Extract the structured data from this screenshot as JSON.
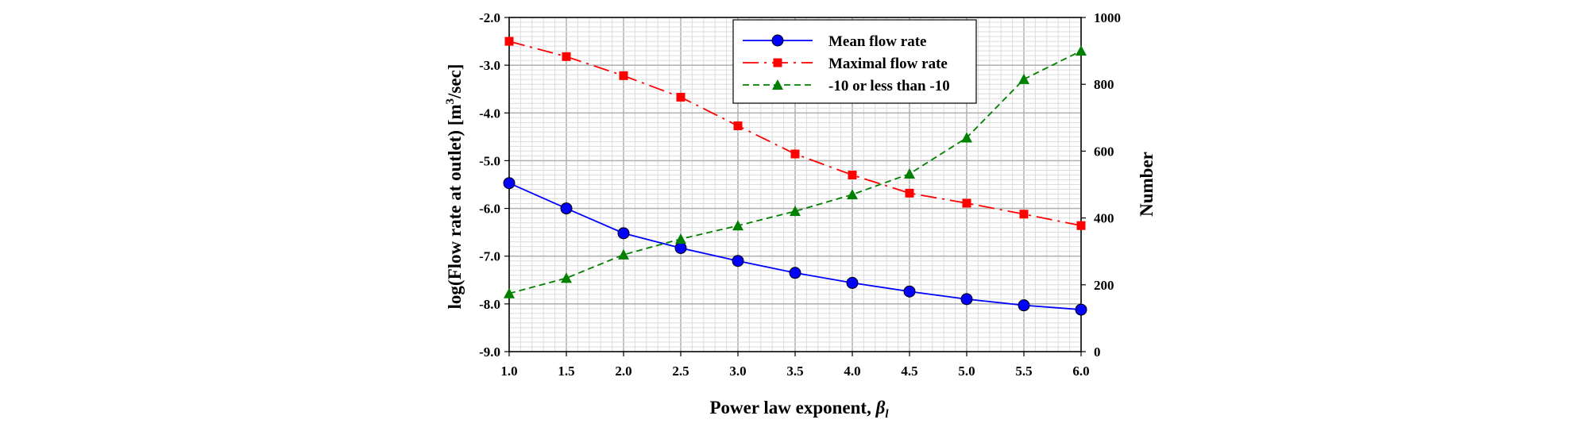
{
  "chart_data": {
    "type": "line",
    "x": [
      1.0,
      1.5,
      2.0,
      2.5,
      3.0,
      3.5,
      4.0,
      4.5,
      5.0,
      5.5,
      6.0
    ],
    "xlim": [
      1.0,
      6.0
    ],
    "x_tick_labels": [
      "1.0",
      "1.5",
      "2.0",
      "2.5",
      "3.0",
      "3.5",
      "4.0",
      "4.5",
      "5.0",
      "5.5",
      "6.0"
    ],
    "xlabel_main": "Power law exponent, ",
    "xlabel_symbol": "β",
    "xlabel_sub": "l",
    "ylabel_left_main": "log(Flow rate at outlet) [m",
    "ylabel_left_sup": "3",
    "ylabel_left_end": "/sec]",
    "ylim_left": [
      -9.0,
      -2.0
    ],
    "y_left_tick_labels": [
      "-9.0",
      "-8.0",
      "-7.0",
      "-6.0",
      "-5.0",
      "-4.0",
      "-3.0",
      "-2.0"
    ],
    "ylabel_right": "Number",
    "ylim_right": [
      0,
      1000
    ],
    "y_right_tick_labels": [
      "0",
      "200",
      "400",
      "600",
      "800",
      "1000"
    ],
    "grid": true,
    "legend_position": "top-right",
    "series": [
      {
        "name": "Mean flow rate",
        "axis": "left",
        "color": "#0000ff",
        "marker": "circle",
        "dash": "solid",
        "values": [
          -5.47,
          -6.0,
          -6.52,
          -6.83,
          -7.1,
          -7.35,
          -7.56,
          -7.74,
          -7.9,
          -8.03,
          -8.12
        ]
      },
      {
        "name": "Maximal flow rate",
        "axis": "left",
        "color": "#ff0000",
        "marker": "square",
        "dash": "longdash",
        "values": [
          -2.5,
          -2.82,
          -3.22,
          -3.67,
          -4.27,
          -4.86,
          -5.3,
          -5.68,
          -5.89,
          -6.12,
          -6.36
        ]
      },
      {
        "name": "-10 or less than -10",
        "axis": "right",
        "color": "#008000",
        "marker": "triangle",
        "dash": "shortdash",
        "values": [
          174,
          220,
          290,
          337,
          377,
          420,
          470,
          532,
          640,
          815,
          900
        ]
      }
    ]
  }
}
